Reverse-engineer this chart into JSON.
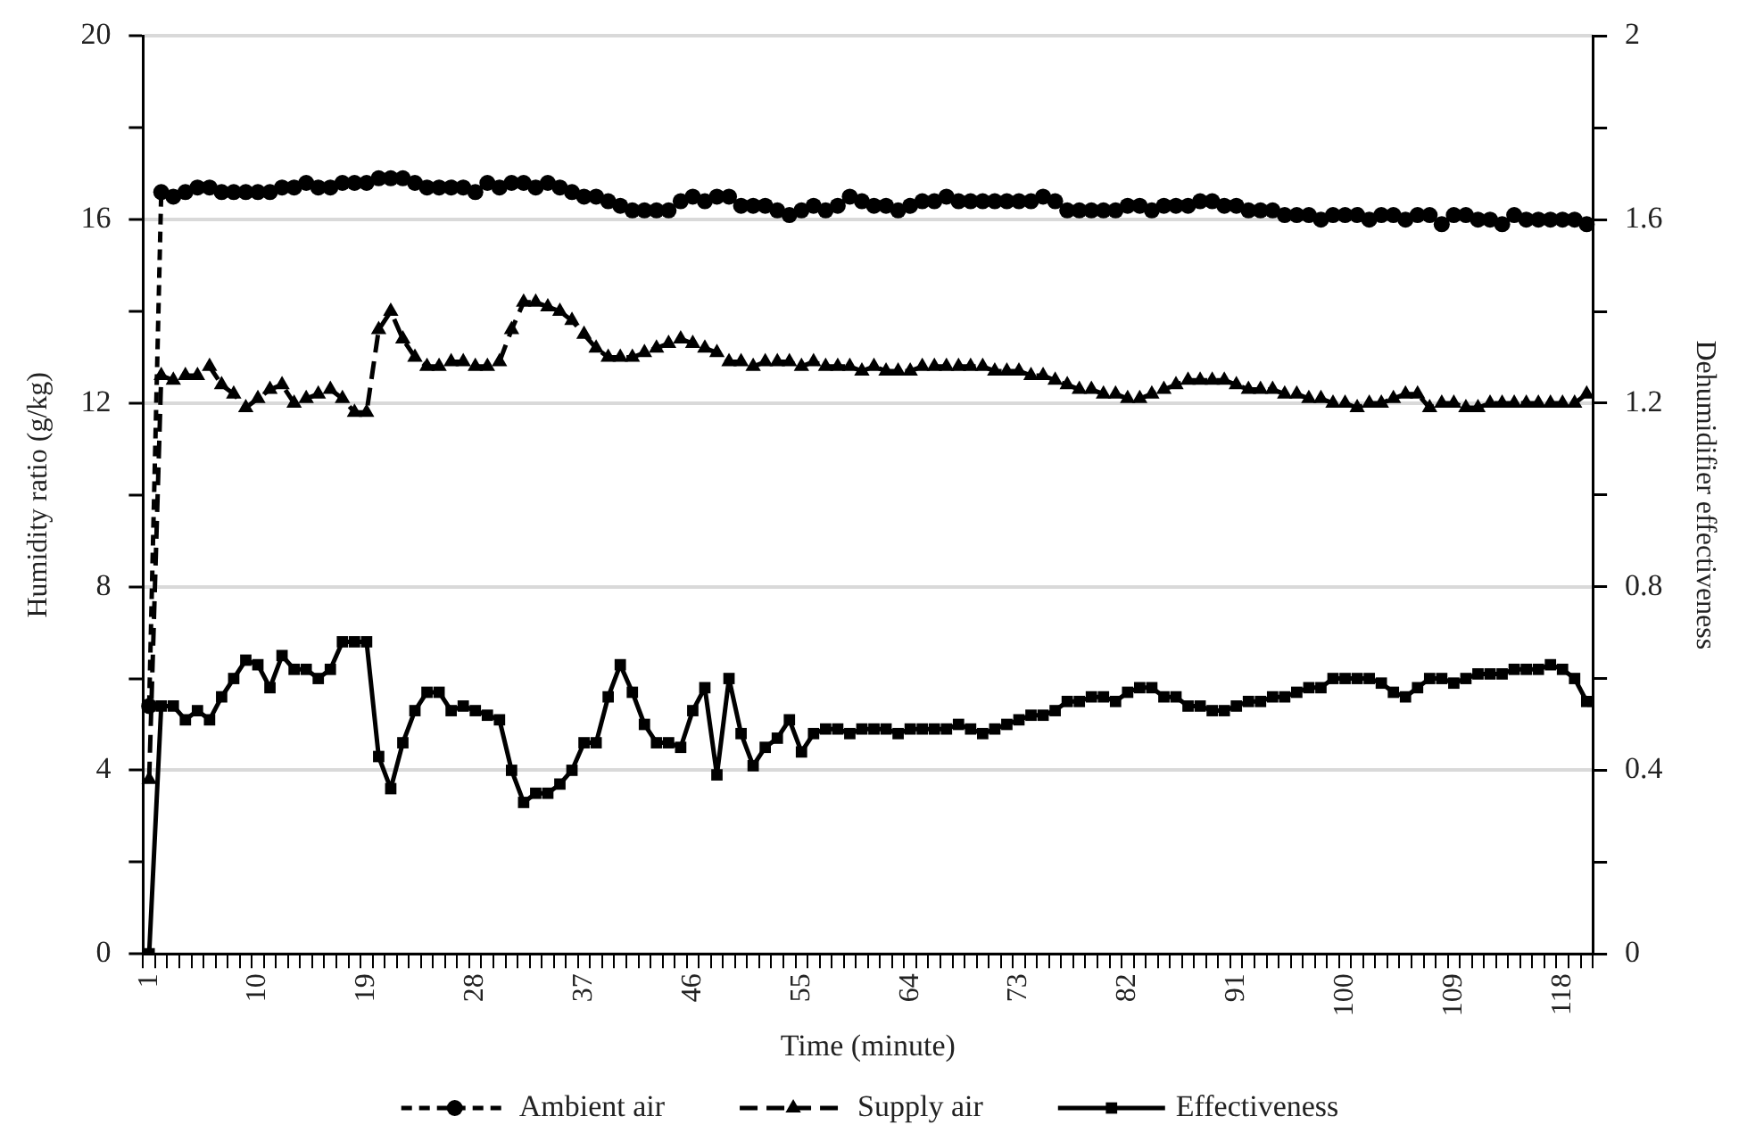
{
  "chart_data": {
    "type": "line",
    "xlabel": "Time (minute)",
    "ylabel": "Humidity ratio (g/kg)",
    "y2label": "Dehumidifier effectiveness",
    "categories": [
      "1",
      null,
      null,
      null,
      null,
      null,
      null,
      null,
      null,
      "10",
      null,
      null,
      null,
      null,
      null,
      null,
      null,
      null,
      "19",
      null,
      null,
      null,
      null,
      null,
      null,
      null,
      null,
      "28",
      null,
      null,
      null,
      null,
      null,
      null,
      null,
      null,
      "37",
      null,
      null,
      null,
      null,
      null,
      null,
      null,
      null,
      "46",
      null,
      null,
      null,
      null,
      null,
      null,
      null,
      null,
      "55",
      null,
      null,
      null,
      null,
      null,
      null,
      null,
      null,
      "64",
      null,
      null,
      null,
      null,
      null,
      null,
      null,
      null,
      "73",
      null,
      null,
      null,
      null,
      null,
      null,
      null,
      null,
      "82",
      null,
      null,
      null,
      null,
      null,
      null,
      null,
      null,
      "91",
      null,
      null,
      null,
      null,
      null,
      null,
      null,
      null,
      "100",
      null,
      null,
      null,
      null,
      null,
      null,
      null,
      null,
      "109",
      null,
      null,
      null,
      null,
      null,
      null,
      null,
      null,
      "118",
      null,
      null
    ],
    "series": [
      {
        "name": "Ambient air",
        "color": "#000000",
        "marker": "circle",
        "line_style": "dashed",
        "values": [
          5.4,
          16.6,
          16.5,
          16.6,
          16.7,
          16.7,
          16.6,
          16.6,
          16.6,
          16.6,
          16.6,
          16.7,
          16.7,
          16.8,
          16.7,
          16.7,
          16.8,
          16.8,
          16.8,
          16.9,
          16.9,
          16.9,
          16.8,
          16.7,
          16.7,
          16.7,
          16.7,
          16.6,
          16.8,
          16.7,
          16.8,
          16.8,
          16.7,
          16.8,
          16.7,
          16.6,
          16.5,
          16.5,
          16.4,
          16.3,
          16.2,
          16.2,
          16.2,
          16.2,
          16.4,
          16.5,
          16.4,
          16.5,
          16.5,
          16.3,
          16.3,
          16.3,
          16.2,
          16.1,
          16.2,
          16.3,
          16.2,
          16.3,
          16.5,
          16.4,
          16.3,
          16.3,
          16.2,
          16.3,
          16.4,
          16.4,
          16.5,
          16.4,
          16.4,
          16.4,
          16.4,
          16.4,
          16.4,
          16.4,
          16.5,
          16.4,
          16.2,
          16.2,
          16.2,
          16.2,
          16.2,
          16.3,
          16.3,
          16.2,
          16.3,
          16.3,
          16.3,
          16.4,
          16.4,
          16.3,
          16.3,
          16.2,
          16.2,
          16.2,
          16.1,
          16.1,
          16.1,
          16.0,
          16.1,
          16.1,
          16.1,
          16.0,
          16.1,
          16.1,
          16.0,
          16.1,
          16.1,
          15.9,
          16.1,
          16.1,
          16.0,
          16.0,
          15.9,
          16.1,
          16.0,
          16.0,
          16.0,
          16.0,
          16.0,
          15.9
        ]
      },
      {
        "name": "Supply air",
        "color": "#000000",
        "marker": "triangle",
        "line_style": "dashed",
        "values": [
          3.8,
          12.6,
          12.5,
          12.6,
          12.6,
          12.8,
          12.4,
          12.2,
          11.9,
          12.1,
          12.3,
          12.4,
          12.0,
          12.1,
          12.2,
          12.3,
          12.1,
          11.8,
          11.8,
          13.6,
          14.0,
          13.4,
          13.0,
          12.8,
          12.8,
          12.9,
          12.9,
          12.8,
          12.8,
          12.9,
          13.6,
          14.2,
          14.2,
          14.1,
          14.0,
          13.8,
          13.5,
          13.2,
          13.0,
          13.0,
          13.0,
          13.1,
          13.2,
          13.3,
          13.4,
          13.3,
          13.2,
          13.1,
          12.9,
          12.9,
          12.8,
          12.9,
          12.9,
          12.9,
          12.8,
          12.9,
          12.8,
          12.8,
          12.8,
          12.7,
          12.8,
          12.7,
          12.7,
          12.7,
          12.8,
          12.8,
          12.8,
          12.8,
          12.8,
          12.8,
          12.7,
          12.7,
          12.7,
          12.6,
          12.6,
          12.5,
          12.4,
          12.3,
          12.3,
          12.2,
          12.2,
          12.1,
          12.1,
          12.2,
          12.3,
          12.4,
          12.5,
          12.5,
          12.5,
          12.5,
          12.4,
          12.3,
          12.3,
          12.3,
          12.2,
          12.2,
          12.1,
          12.1,
          12.0,
          12.0,
          11.9,
          12.0,
          12.0,
          12.1,
          12.2,
          12.2,
          11.9,
          12.0,
          12.0,
          11.9,
          11.9,
          12.0,
          12.0,
          12.0,
          12.0,
          12.0,
          12.0,
          12.0,
          12.0,
          12.2
        ]
      },
      {
        "name": "Effectiveness",
        "color": "#000000",
        "marker": "square",
        "line_style": "solid",
        "axis": "y2",
        "values": [
          0,
          0.54,
          0.54,
          0.51,
          0.53,
          0.51,
          0.56,
          0.6,
          0.64,
          0.63,
          0.58,
          0.65,
          0.62,
          0.62,
          0.6,
          0.62,
          0.68,
          0.68,
          0.68,
          0.43,
          0.36,
          0.46,
          0.53,
          0.57,
          0.57,
          0.53,
          0.54,
          0.53,
          0.52,
          0.51,
          0.4,
          0.33,
          0.35,
          0.35,
          0.37,
          0.4,
          0.46,
          0.46,
          0.56,
          0.63,
          0.57,
          0.5,
          0.46,
          0.46,
          0.45,
          0.53,
          0.58,
          0.39,
          0.6,
          0.48,
          0.41,
          0.45,
          0.47,
          0.51,
          0.44,
          0.48,
          0.49,
          0.49,
          0.48,
          0.49,
          0.49,
          0.49,
          0.48,
          0.49,
          0.49,
          0.49,
          0.49,
          0.5,
          0.49,
          0.48,
          0.49,
          0.5,
          0.51,
          0.52,
          0.52,
          0.53,
          0.55,
          0.55,
          0.56,
          0.56,
          0.55,
          0.57,
          0.58,
          0.58,
          0.56,
          0.56,
          0.54,
          0.54,
          0.53,
          0.53,
          0.54,
          0.55,
          0.55,
          0.56,
          0.56,
          0.57,
          0.58,
          0.58,
          0.6,
          0.6,
          0.6,
          0.6,
          0.59,
          0.57,
          0.56,
          0.58,
          0.6,
          0.6,
          0.59,
          0.6,
          0.61,
          0.61,
          0.61,
          0.62,
          0.62,
          0.62,
          0.63,
          0.62,
          0.6,
          0.55
        ]
      }
    ],
    "ylim": [
      0,
      20
    ],
    "yticks": [
      0,
      {
        "value": 2,
        "label": null
      },
      4,
      {
        "value": 6,
        "label": null
      },
      8,
      {
        "value": 10,
        "label": null
      },
      12,
      {
        "value": 14,
        "label": null
      },
      16,
      {
        "value": 18,
        "label": null
      },
      20
    ],
    "y2lim": [
      0,
      2
    ],
    "y2ticks": [
      0,
      {
        "value": 0.2,
        "label": null
      },
      0.4,
      {
        "value": 0.6,
        "label": null
      },
      0.8,
      {
        "value": 1,
        "label": null
      },
      1.2,
      {
        "value": 1.4,
        "label": null
      },
      1.6,
      {
        "value": 1.8,
        "label": null
      },
      2
    ],
    "grid": "y",
    "legend": "bottom"
  }
}
